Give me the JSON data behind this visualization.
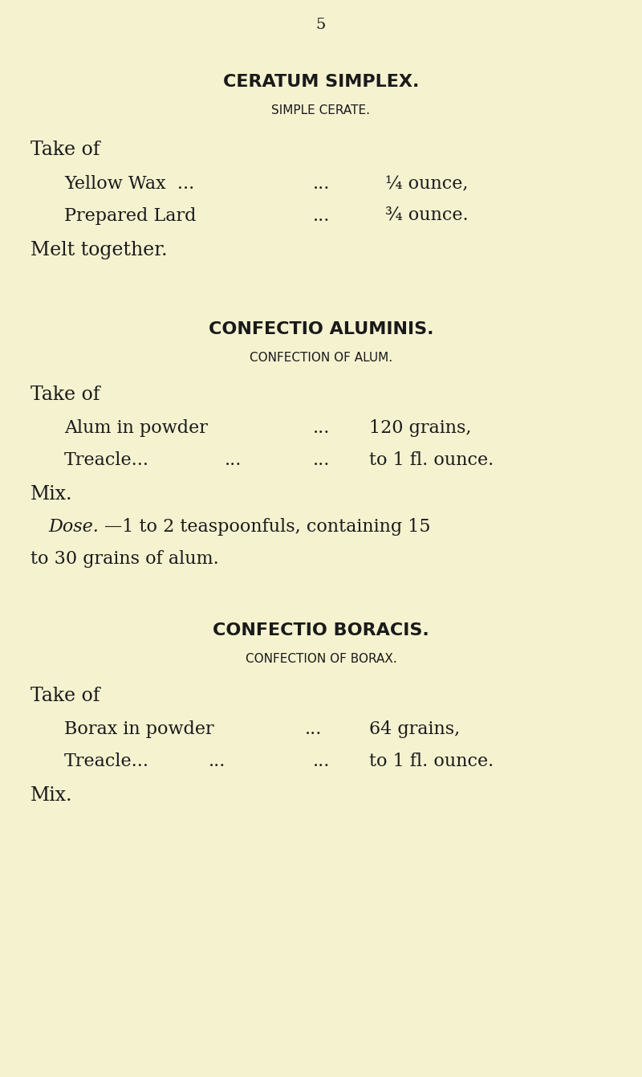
{
  "background_color": "#f5f2d0",
  "page_number": "5",
  "text_color": "#1a1a1a",
  "sections": [
    {
      "title": "CERATUM SIMPLEX.",
      "subtitle": "SIMPLE CERATE.",
      "title_fontsize": 16,
      "subtitle_fontsize": 11,
      "title_bold": true,
      "subtitle_bold": false,
      "take_of": "Take of",
      "ingredients": [
        {
          "name": "Yellow Wax  ...",
          "dots": "...",
          "amount": "¼ ounce,"
        },
        {
          "name": "Prepared Lard",
          "dots": "...",
          "amount": "¾ ounce."
        }
      ],
      "instruction": "Melt together."
    },
    {
      "title": "CONFECTIO ALUMINIS.",
      "subtitle": "CONFECTION OF ALUM.",
      "title_fontsize": 16,
      "subtitle_fontsize": 11,
      "title_bold": true,
      "subtitle_bold": false,
      "take_of": "Take of",
      "ingredients": [
        {
          "name": "Alum in powder",
          "dots": "...",
          "amount": "120 grains,"
        },
        {
          "name": "Treacle...",
          "dots": "... ...",
          "amount": "to 1 fl. ounce."
        }
      ],
      "instruction": "Mix.",
      "dose": "Dose.—1 to 2 teaspoonfuls, containing 15\nto 30 grains of alum."
    },
    {
      "title": "CONFECTIO BORACIS.",
      "subtitle": "CONFECTION OF BORAX.",
      "title_fontsize": 16,
      "subtitle_fontsize": 11,
      "title_bold": true,
      "subtitle_bold": false,
      "take_of": "Take of",
      "ingredients": [
        {
          "name": "Borax in powder",
          "dots": "...",
          "amount": "64 grains,"
        },
        {
          "name": "Treacle...",
          "dots": "...",
          "amount": "to 1 fl. ounce."
        }
      ],
      "instruction": "Mix."
    }
  ]
}
